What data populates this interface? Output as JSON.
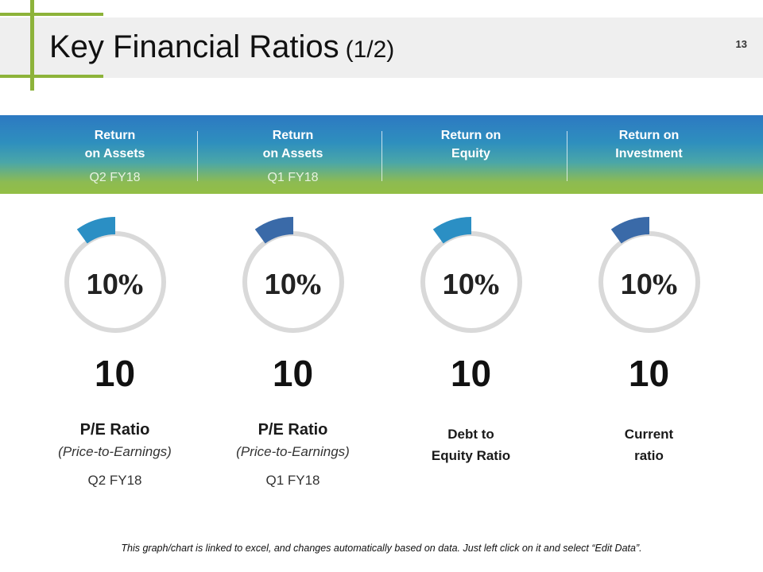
{
  "title": {
    "main": "Key Financial Ratios",
    "sub": "(1/2)",
    "page_number": "13"
  },
  "header_band": {
    "columns": [
      {
        "line1": "Return",
        "line2": "on Assets",
        "period": "Q2 FY18"
      },
      {
        "line1": "Return",
        "line2": "on Assets",
        "period": "Q1 FY18"
      },
      {
        "line1": "Return on",
        "line2": "Equity",
        "period": ""
      },
      {
        "line1": "Return on",
        "line2": "Investment",
        "period": ""
      }
    ]
  },
  "ratios": [
    {
      "percent": "10",
      "percent_symbol": "%",
      "fill_fraction": 0.1,
      "accent": "#2b8fc4",
      "value": "10",
      "label": "P/E Ratio",
      "sublabel": "(Price-to-Earnings)",
      "period": "Q2 FY18"
    },
    {
      "percent": "10",
      "percent_symbol": "%",
      "fill_fraction": 0.1,
      "accent": "#3a6aa8",
      "value": "10",
      "label": "P/E Ratio",
      "sublabel": "(Price-to-Earnings)",
      "period": "Q1 FY18"
    },
    {
      "percent": "10",
      "percent_symbol": "%",
      "fill_fraction": 0.1,
      "accent": "#2b8fc4",
      "value": "10",
      "label_line1": "Debt to",
      "label_line2": "Equity Ratio"
    },
    {
      "percent": "10",
      "percent_symbol": "%",
      "fill_fraction": 0.1,
      "accent": "#3a6aa8",
      "value": "10",
      "label_line1": "Current",
      "label_line2": "ratio"
    }
  ],
  "colors": {
    "ring_track": "#d9d9d9",
    "band_top": "#2d79c2",
    "band_bottom": "#93be45",
    "accent_green": "#8db33a"
  },
  "footnote": "This graph/chart is linked to excel, and changes automatically based on data. Just left click on it and select “Edit Data”."
}
